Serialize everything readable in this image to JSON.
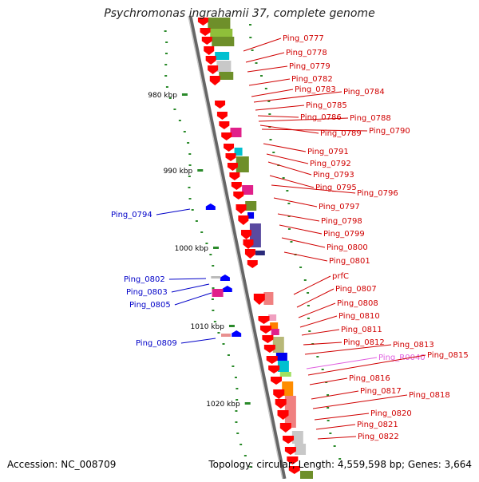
{
  "title": "Psychromonas ingrahamii 37, complete genome",
  "footer": {
    "accession": "Accession: NC_008709",
    "stats": "Topology: circular; Length: 4,559,598 bp; Genes: 3,664"
  },
  "colors": {
    "forward_label": "#d00000",
    "reverse_label": "#0000c8",
    "rna_label": "#e060e0",
    "backbone": "#888888",
    "arrow_red": "#ff0000",
    "arrow_blue": "#0000ff",
    "tick": "#2a8a2a"
  },
  "scale_ticks": [
    "980 kbp",
    "990 kbp",
    "1000 kbp",
    "1010 kbp",
    "1020 kbp"
  ],
  "right_labels": [
    "Ping_0777",
    "Ping_0778",
    "Ping_0779",
    "Ping_0782",
    "Ping_0783",
    "Ping_0784",
    "Ping_0785",
    "Ping_0786",
    "Ping_0788",
    "Ping_0789",
    "Ping_0790",
    "Ping_0791",
    "Ping_0792",
    "Ping_0793",
    "Ping_0795",
    "Ping_0796",
    "Ping_0797",
    "Ping_0798",
    "Ping_0799",
    "Ping_0800",
    "Ping_0801",
    "prfC",
    "Ping_0807",
    "Ping_0808",
    "Ping_0810",
    "Ping_0811",
    "Ping_0812",
    "Ping_0813",
    "Ping_R0040",
    "Ping_0815",
    "Ping_0816",
    "Ping_0817",
    "Ping_0818",
    "Ping_0820",
    "Ping_0821",
    "Ping_0822"
  ],
  "left_labels": [
    "Ping_0794",
    "Ping_0802",
    "Ping_0803",
    "Ping_0805",
    "Ping_0809"
  ]
}
